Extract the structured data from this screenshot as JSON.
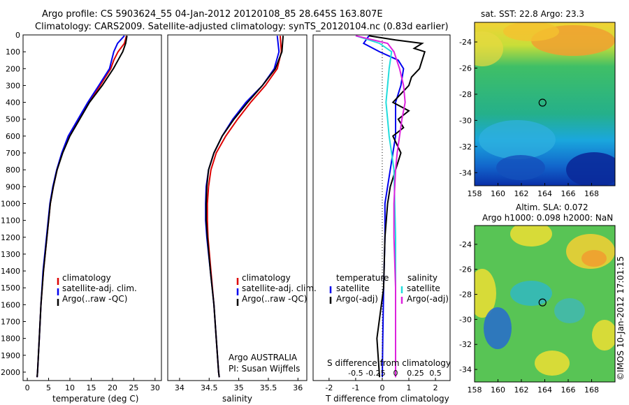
{
  "header": {
    "line1": "Argo profile: CS 5903624_55 04-Jan-2012 20120108_85 28.645S 163.807E",
    "line2": "Climatology: CARS2009. Satellite-adjusted climatology: synTS_20120104.nc (0.83d earlier)"
  },
  "footer": {
    "agency": "Argo AUSTRALIA",
    "pi": "PI: Susan Wijffels",
    "stamp": "©IMOS 10-Jan-2012 17:01:15"
  },
  "colors": {
    "climatology": "#dd0000",
    "satellite": "#0000ee",
    "argo": "#000000",
    "sal_satellite": "#22dddd",
    "sal_argo": "#dd22dd"
  },
  "chart_data": [
    {
      "type": "line",
      "panel": "temperature",
      "xlabel": "temperature (deg C)",
      "ylabel": "",
      "xlim": [
        -1,
        31.5
      ],
      "ylim": [
        0,
        2050
      ],
      "xticks": [
        0,
        5,
        10,
        15,
        20,
        25,
        30
      ],
      "yticks": [
        0,
        100,
        200,
        300,
        400,
        500,
        600,
        700,
        800,
        900,
        1000,
        1100,
        1200,
        1300,
        1400,
        1500,
        1600,
        1700,
        1800,
        1900,
        2000
      ],
      "y_reversed": true,
      "legend": [
        "climatology",
        "satellite-adj. clim.",
        "Argo(..raw -QC)"
      ],
      "series": [
        {
          "name": "climatology",
          "color": "#dd0000",
          "depth": [
            5,
            50,
            100,
            150,
            200,
            300,
            400,
            500,
            600,
            700,
            800,
            900,
            1000,
            1200,
            1400,
            1600,
            1800,
            2000,
            2030
          ],
          "values": [
            23.3,
            22.8,
            21.3,
            20.3,
            19.6,
            17.1,
            14.4,
            12.1,
            9.8,
            8.2,
            7.0,
            6.1,
            5.4,
            4.6,
            3.8,
            3.2,
            2.8,
            2.4,
            2.3
          ]
        },
        {
          "name": "satellite-adj. clim.",
          "color": "#0000ee",
          "depth": [
            5,
            50,
            100,
            150,
            200,
            300,
            400,
            500,
            600,
            700,
            800,
            900,
            1000,
            1200,
            1400,
            1600,
            1800,
            2000,
            2030
          ],
          "values": [
            22.8,
            21.2,
            20.3,
            19.8,
            19.3,
            16.8,
            14.2,
            11.9,
            9.6,
            8.1,
            6.9,
            6.0,
            5.3,
            4.5,
            3.7,
            3.2,
            2.8,
            2.4,
            2.3
          ]
        },
        {
          "name": "Argo(..raw -QC)",
          "color": "#000000",
          "depth": [
            5,
            50,
            100,
            150,
            200,
            300,
            400,
            500,
            600,
            700,
            800,
            900,
            1000,
            1200,
            1400,
            1600,
            1800,
            2000,
            2030
          ],
          "values": [
            23.4,
            23.1,
            22.4,
            21.3,
            20.2,
            17.6,
            14.6,
            12.3,
            10.0,
            8.3,
            7.0,
            6.1,
            5.4,
            4.6,
            3.8,
            3.2,
            2.8,
            2.4,
            2.3
          ]
        }
      ]
    },
    {
      "type": "line",
      "panel": "salinity",
      "xlabel": "salinity",
      "ylabel": "",
      "xlim": [
        33.8,
        36.15
      ],
      "ylim": [
        0,
        2050
      ],
      "xticks": [
        34,
        34.5,
        35,
        35.5,
        36
      ],
      "y_reversed": true,
      "legend": [
        "climatology",
        "satellite-adj. clim.",
        "Argo(..raw -QC)"
      ],
      "series": [
        {
          "name": "climatology",
          "color": "#dd0000",
          "depth": [
            5,
            100,
            200,
            300,
            400,
            500,
            600,
            700,
            800,
            900,
            1000,
            1100,
            1200,
            1400,
            1600,
            1800,
            2000,
            2030
          ],
          "values": [
            35.7,
            35.72,
            35.65,
            35.45,
            35.2,
            34.98,
            34.78,
            34.62,
            34.53,
            34.49,
            34.47,
            34.47,
            34.48,
            34.53,
            34.58,
            34.62,
            34.66,
            34.67
          ]
        },
        {
          "name": "satellite-adj. clim.",
          "color": "#0000ee",
          "depth": [
            5,
            100,
            200,
            300,
            400,
            500,
            600,
            700,
            800,
            900,
            1000,
            1100,
            1200,
            1400,
            1600,
            1800,
            2000,
            2030
          ],
          "values": [
            35.65,
            35.68,
            35.6,
            35.4,
            35.12,
            34.9,
            34.72,
            34.58,
            34.49,
            34.45,
            34.44,
            34.44,
            34.46,
            34.52,
            34.58,
            34.62,
            34.66,
            34.67
          ]
        },
        {
          "name": "Argo(..raw -QC)",
          "color": "#000000",
          "depth": [
            5,
            100,
            200,
            300,
            400,
            500,
            600,
            700,
            800,
            900,
            1000,
            1100,
            1200,
            1400,
            1600,
            1800,
            2000,
            2030
          ],
          "values": [
            35.75,
            35.73,
            35.62,
            35.4,
            35.15,
            34.92,
            34.72,
            34.58,
            34.49,
            34.46,
            34.45,
            34.45,
            34.47,
            34.52,
            34.58,
            34.62,
            34.66,
            34.67
          ]
        }
      ]
    },
    {
      "type": "line",
      "panel": "difference",
      "xlabel": "T difference from climatology",
      "xlabel_top": "S difference from climatology",
      "xlim": [
        -2.6,
        2.55
      ],
      "ylim": [
        0,
        2050
      ],
      "xticks": [
        -2,
        -1,
        0,
        1,
        2
      ],
      "xticks_s": [
        -0.5,
        -0.25,
        0,
        0.25,
        0.5
      ],
      "xticks_s_labels": [
        "-0.5",
        "-0.25",
        "0",
        "0.25",
        "0.5"
      ],
      "y_reversed": true,
      "legend_temperature": {
        "title": "temperature",
        "items": [
          "satellite",
          "Argo(-adj)"
        ]
      },
      "legend_salinity": {
        "title": "salinity",
        "items": [
          "satellite",
          "Argo(-adj)"
        ]
      },
      "series": [
        {
          "name": "temperature satellite",
          "color": "#0000ee",
          "depth": [
            5,
            50,
            100,
            150,
            200,
            300,
            400,
            500,
            600,
            700,
            800,
            900,
            1000,
            1200,
            1500,
            1800,
            2030
          ],
          "values": [
            -0.5,
            -0.7,
            -0.1,
            0.6,
            0.8,
            0.7,
            0.5,
            0.5,
            0.5,
            0.4,
            0.3,
            0.2,
            0.1,
            0.1,
            0.05,
            0.02,
            0.0
          ]
        },
        {
          "name": "temperature Argo(-adj)",
          "color": "#000000",
          "depth": [
            5,
            30,
            50,
            80,
            100,
            150,
            200,
            250,
            300,
            400,
            450,
            500,
            550,
            600,
            700,
            800,
            900,
            1000,
            1200,
            1500,
            1800,
            2030
          ],
          "values": [
            -0.5,
            0.5,
            1.5,
            1.2,
            1.6,
            1.5,
            1.4,
            1.1,
            1.0,
            0.4,
            1.0,
            0.6,
            0.8,
            0.4,
            0.7,
            0.5,
            0.3,
            0.2,
            0.1,
            0.05,
            -0.2,
            -0.1
          ]
        },
        {
          "name": "salinity satellite",
          "color": "#22dddd",
          "depth": [
            5,
            50,
            100,
            200,
            300,
            400,
            500,
            600,
            700,
            800,
            1000,
            1200,
            1500,
            1800,
            2030
          ],
          "values": [
            -0.5,
            -0.2,
            -0.05,
            -0.08,
            -0.1,
            -0.12,
            -0.1,
            -0.08,
            -0.05,
            -0.02,
            -0.01,
            0.0,
            0.0,
            0.0,
            0.0
          ]
        },
        {
          "name": "salinity Argo(-adj)",
          "color": "#dd22dd",
          "depth": [
            5,
            50,
            100,
            200,
            300,
            400,
            500,
            600,
            700,
            800,
            1000,
            1200,
            1500,
            1800,
            2030
          ],
          "values": [
            -0.5,
            -0.1,
            -0.02,
            0.05,
            0.1,
            0.12,
            0.08,
            0.05,
            0.02,
            0.0,
            -0.02,
            -0.02,
            0.0,
            0.0,
            0.0
          ]
        }
      ]
    },
    {
      "type": "heatmap",
      "panel": "sst-map",
      "title": "sat. SST: 22.8  Argo: 23.3",
      "xlim": [
        158,
        170
      ],
      "ylim": [
        -35,
        -22.5
      ],
      "xticks": [
        158,
        160,
        162,
        164,
        166,
        168
      ],
      "yticks": [
        -24,
        -26,
        -28,
        -30,
        -32,
        -34
      ],
      "marker": {
        "lon": 163.807,
        "lat": -28.645
      }
    },
    {
      "type": "heatmap",
      "panel": "sla-map",
      "title": "Altim. SLA: 0.072",
      "subtitle": "Argo h1000: 0.098 h2000: NaN",
      "xlim": [
        158,
        170
      ],
      "ylim": [
        -35,
        -22.5
      ],
      "xticks": [
        158,
        160,
        162,
        164,
        166,
        168
      ],
      "yticks": [
        -24,
        -26,
        -28,
        -30,
        -32,
        -34
      ],
      "marker": {
        "lon": 163.807,
        "lat": -28.645
      }
    }
  ]
}
